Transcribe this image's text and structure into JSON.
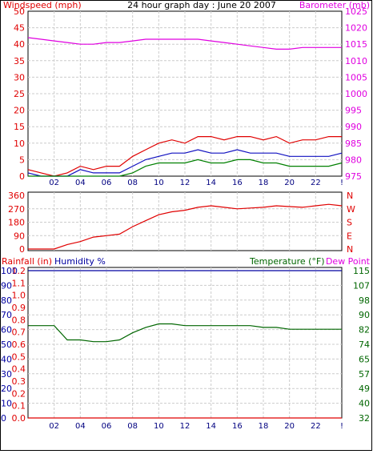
{
  "title": "24 hour graph day : June 20 2007",
  "colors": {
    "border": "#000000",
    "grid": "#cccccc",
    "wind_gust": "#e00000",
    "wind_avg": "#1010c0",
    "wind_low": "#008000",
    "barometer": "#e000e0",
    "direction": "#e00000",
    "rainfall": "#e00000",
    "humidity": "#0000a0",
    "temperature": "#006600",
    "dewpoint": "#e000e0"
  },
  "x_ticks": [
    "02",
    "04",
    "06",
    "08",
    "10",
    "12",
    "14",
    "16",
    "18",
    "20",
    "22",
    "!"
  ],
  "chart_data": [
    {
      "type": "line",
      "title": "24 hour graph day : June 20 2007",
      "ylabel_left": "Windspeed (mph)",
      "ylabel_right": "Barometer (mb)",
      "y_left_ticks": [
        "0",
        "5",
        "10",
        "15",
        "20",
        "25",
        "30",
        "35",
        "40",
        "45",
        "50"
      ],
      "y_right_ticks": [
        "975",
        "980",
        "985",
        "990",
        "995",
        "1000",
        "1005",
        "1010",
        "1015",
        "1020",
        "1025"
      ],
      "ylim_left": [
        0,
        50
      ],
      "ylim_right": [
        975,
        1025
      ],
      "grid": true,
      "x_hours": [
        0,
        1,
        2,
        3,
        4,
        5,
        6,
        7,
        8,
        9,
        10,
        11,
        12,
        13,
        14,
        15,
        16,
        17,
        18,
        19,
        20,
        21,
        22,
        23,
        24
      ],
      "series": [
        {
          "axis": "right",
          "values": [
            1017,
            1016.5,
            1016,
            1015.5,
            1015,
            1015,
            1015.5,
            1015.5,
            1016,
            1016.5,
            1016.5,
            1016.5,
            1016.5,
            1016.5,
            1016,
            1015.5,
            1015,
            1014.5,
            1014,
            1013.5,
            1013.5,
            1014,
            1014,
            1014,
            1014
          ]
        },
        {
          "axis": "left",
          "values": [
            2,
            1,
            0,
            1,
            3,
            2,
            3,
            3,
            6,
            8,
            10,
            11,
            10,
            12,
            12,
            11,
            12,
            12,
            11,
            12,
            10,
            11,
            11,
            12,
            12
          ]
        },
        {
          "axis": "left",
          "values": [
            1,
            0,
            0,
            0,
            2,
            1,
            1,
            1,
            3,
            5,
            6,
            7,
            7,
            8,
            7,
            7,
            8,
            7,
            7,
            7,
            6,
            6,
            6,
            6,
            7
          ]
        },
        {
          "axis": "left",
          "values": [
            0,
            0,
            0,
            0,
            0,
            0,
            0,
            0,
            1,
            3,
            4,
            4,
            4,
            5,
            4,
            4,
            5,
            5,
            4,
            4,
            3,
            3,
            3,
            3,
            4
          ]
        }
      ]
    },
    {
      "type": "line",
      "y_left_ticks": [
        "360",
        "270",
        "180",
        "90",
        "0"
      ],
      "y_right_labels": [
        "N",
        "W",
        "S",
        "E",
        "N"
      ],
      "ylim": [
        0,
        360
      ],
      "grid": true,
      "x_hours": [
        0,
        1,
        2,
        3,
        4,
        5,
        6,
        7,
        8,
        9,
        10,
        11,
        12,
        13,
        14,
        15,
        16,
        17,
        18,
        19,
        20,
        21,
        22,
        23,
        24
      ],
      "values": [
        0,
        0,
        0,
        30,
        50,
        80,
        90,
        100,
        150,
        190,
        230,
        250,
        260,
        280,
        290,
        280,
        270,
        275,
        280,
        290,
        285,
        280,
        290,
        300,
        290
      ]
    },
    {
      "type": "line",
      "ylabel_rain": "Rainfall (in)",
      "ylabel_humidity": "Humidity %",
      "ylabel_temp": "Temperature (°F)",
      "ylabel_dew": "Dew Point",
      "y_rain_ticks": [
        "0.0",
        "0.1",
        "0.2",
        "0.3",
        "0.4",
        "0.5",
        "0.6",
        "0.7",
        "0.8",
        "0.9",
        "1.0",
        "1.1",
        "1.2"
      ],
      "y_humidity_ticks": [
        "0",
        "10",
        "20",
        "30",
        "40",
        "50",
        "60",
        "70",
        "80",
        "90",
        "100"
      ],
      "y_temp_ticks": [
        "32",
        "40",
        "49",
        "57",
        "65",
        "74",
        "82",
        "90",
        "98",
        "107",
        "115"
      ],
      "ylim_rain": [
        0,
        1.2
      ],
      "ylim_temp": [
        32,
        115
      ],
      "grid": true,
      "x_hours": [
        0,
        1,
        2,
        3,
        4,
        5,
        6,
        7,
        8,
        9,
        10,
        11,
        12,
        13,
        14,
        15,
        16,
        17,
        18,
        19,
        20,
        21,
        22,
        23,
        24
      ],
      "series": [
        {
          "axis": "temp",
          "values": [
            84,
            84,
            84,
            76,
            76,
            75,
            75,
            76,
            80,
            83,
            85,
            85,
            84,
            84,
            84,
            84,
            84,
            84,
            83,
            83,
            82,
            82,
            82,
            82,
            82
          ]
        },
        {
          "axis": "rain",
          "values": [
            0,
            0,
            0,
            0,
            0,
            0,
            0,
            0,
            0,
            0,
            0,
            0,
            0,
            0,
            0,
            0,
            0,
            0,
            0,
            0,
            0,
            0,
            0,
            0,
            0
          ]
        },
        {
          "axis": "humidity",
          "values": [
            100,
            100,
            100,
            100,
            100,
            100,
            100,
            100,
            100,
            100,
            100,
            100,
            100,
            100,
            100,
            100,
            100,
            100,
            100,
            100,
            100,
            100,
            100,
            100,
            100
          ]
        }
      ]
    }
  ]
}
